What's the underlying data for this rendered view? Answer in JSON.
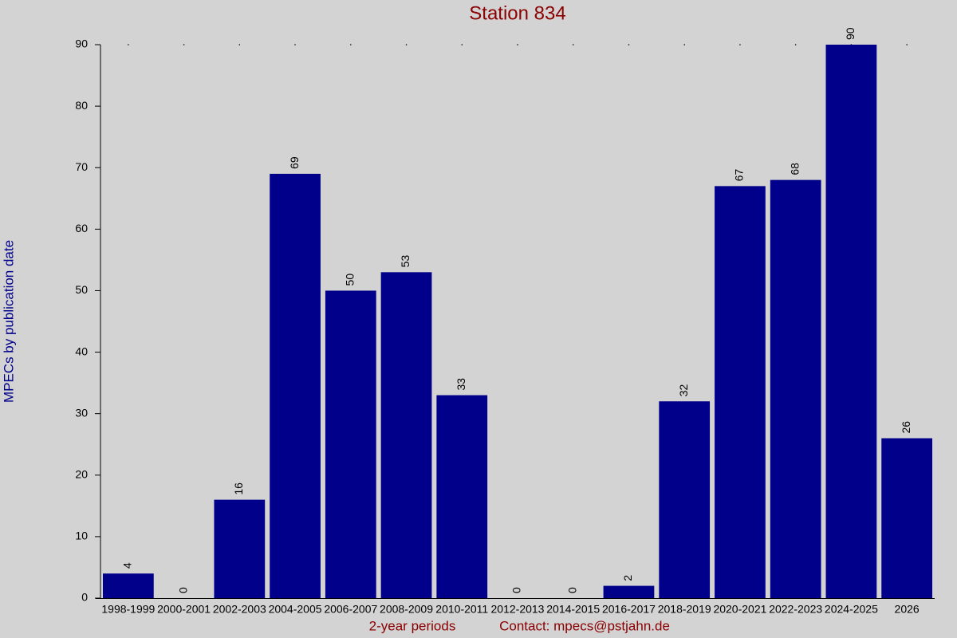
{
  "chart_data": {
    "type": "bar",
    "title": "Station 834",
    "x_label": "2-year periods",
    "contact": "Contact: mpecs@pstjahn.de",
    "y_label": "MPECs by publication date",
    "categories": [
      "1998-1999",
      "2000-2001",
      "2002-2003",
      "2004-2005",
      "2006-2007",
      "2008-2009",
      "2010-2011",
      "2012-2013",
      "2014-2015",
      "2016-2017",
      "2018-2019",
      "2020-2021",
      "2022-2023",
      "2024-2025",
      "2026"
    ],
    "values": [
      4,
      0,
      16,
      69,
      50,
      53,
      33,
      0,
      0,
      2,
      32,
      67,
      68,
      90,
      26
    ],
    "color": "#00008b",
    "ylim": [
      0,
      90
    ],
    "yticks": [
      0,
      10,
      20,
      30,
      40,
      50,
      60,
      70,
      80,
      90
    ]
  }
}
